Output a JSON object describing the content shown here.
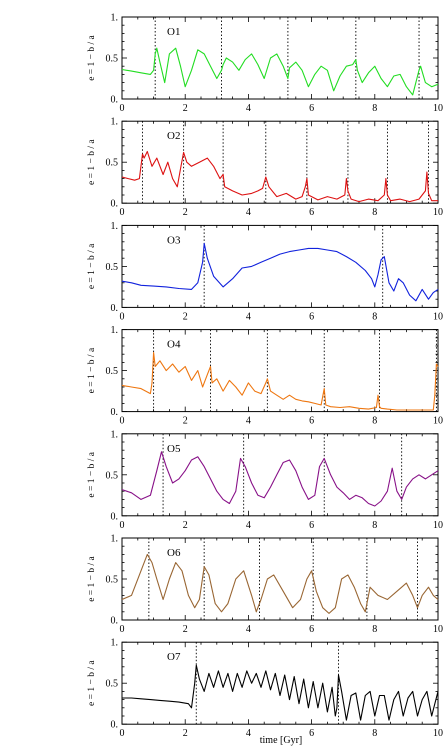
{
  "figure": {
    "xlabel": "time [Gyr]"
  },
  "chart_data": [
    {
      "type": "line",
      "name": "O1",
      "color": "#22dd22",
      "ylabel": "e = 1 − b / a",
      "xlim": [
        0,
        10
      ],
      "ylim": [
        0,
        1
      ],
      "xticks": [
        "0",
        "2",
        "4",
        "6",
        "8",
        "10"
      ],
      "yticks": [
        "0.",
        "0.5",
        "1."
      ],
      "pericenters": [
        1.05,
        3.15,
        5.25,
        7.4,
        9.4
      ],
      "x": [
        0,
        0.3,
        0.6,
        0.9,
        1.0,
        1.05,
        1.1,
        1.2,
        1.35,
        1.5,
        1.7,
        1.85,
        2.0,
        2.2,
        2.4,
        2.6,
        2.8,
        3.0,
        3.15,
        3.2,
        3.3,
        3.5,
        3.7,
        3.9,
        4.1,
        4.3,
        4.5,
        4.7,
        4.9,
        5.1,
        5.25,
        5.3,
        5.5,
        5.7,
        5.9,
        6.1,
        6.3,
        6.5,
        6.7,
        6.9,
        7.1,
        7.3,
        7.4,
        7.45,
        7.6,
        7.8,
        8.0,
        8.2,
        8.4,
        8.6,
        8.8,
        9.0,
        9.2,
        9.4,
        9.45,
        9.6,
        9.8,
        10.0
      ],
      "y": [
        0.36,
        0.34,
        0.32,
        0.3,
        0.35,
        0.55,
        0.62,
        0.45,
        0.2,
        0.55,
        0.62,
        0.4,
        0.15,
        0.35,
        0.6,
        0.55,
        0.4,
        0.25,
        0.35,
        0.42,
        0.5,
        0.45,
        0.35,
        0.48,
        0.55,
        0.42,
        0.25,
        0.5,
        0.55,
        0.4,
        0.25,
        0.38,
        0.45,
        0.35,
        0.15,
        0.3,
        0.4,
        0.35,
        0.1,
        0.28,
        0.4,
        0.42,
        0.48,
        0.35,
        0.2,
        0.32,
        0.4,
        0.25,
        0.15,
        0.28,
        0.3,
        0.15,
        0.05,
        0.35,
        0.4,
        0.2,
        0.15,
        0.18
      ]
    },
    {
      "type": "line",
      "name": "O2",
      "color": "#dd1111",
      "ylabel": "e = 1 − b / a",
      "xlim": [
        0,
        10
      ],
      "ylim": [
        0,
        1
      ],
      "xticks": [
        "0",
        "2",
        "4",
        "6",
        "8",
        "10"
      ],
      "yticks": [
        "0.",
        "0.5",
        "1."
      ],
      "pericenters": [
        0.65,
        1.95,
        3.2,
        4.55,
        5.85,
        7.15,
        8.4,
        9.7
      ],
      "x": [
        0,
        0.2,
        0.4,
        0.55,
        0.65,
        0.7,
        0.8,
        0.95,
        1.1,
        1.3,
        1.45,
        1.6,
        1.75,
        1.85,
        1.95,
        2.05,
        2.2,
        2.45,
        2.7,
        2.9,
        3.1,
        3.2,
        3.25,
        3.5,
        3.8,
        4.1,
        4.3,
        4.45,
        4.55,
        4.65,
        4.9,
        5.2,
        5.5,
        5.7,
        5.8,
        5.85,
        5.9,
        6.2,
        6.5,
        6.8,
        7.05,
        7.1,
        7.15,
        7.25,
        7.5,
        7.8,
        8.1,
        8.3,
        8.35,
        8.4,
        8.5,
        8.8,
        9.1,
        9.4,
        9.6,
        9.65,
        9.7,
        9.8,
        10.0
      ],
      "y": [
        0.32,
        0.3,
        0.28,
        0.3,
        0.6,
        0.55,
        0.63,
        0.45,
        0.55,
        0.35,
        0.5,
        0.3,
        0.2,
        0.42,
        0.62,
        0.5,
        0.45,
        0.5,
        0.55,
        0.45,
        0.3,
        0.35,
        0.2,
        0.15,
        0.1,
        0.12,
        0.15,
        0.18,
        0.32,
        0.2,
        0.08,
        0.12,
        0.05,
        0.08,
        0.2,
        0.3,
        0.1,
        0.04,
        0.08,
        0.05,
        0.1,
        0.3,
        0.15,
        0.05,
        0.02,
        0.05,
        0.03,
        0.1,
        0.3,
        0.1,
        0.03,
        0.05,
        0.02,
        0.05,
        0.15,
        0.38,
        0.12,
        0.03,
        0.03
      ]
    },
    {
      "type": "line",
      "name": "O3",
      "color": "#1122dd",
      "ylabel": "e = 1 − b / a",
      "xlim": [
        0,
        10
      ],
      "ylim": [
        0,
        1
      ],
      "xticks": [
        "0",
        "2",
        "4",
        "6",
        "8",
        "10"
      ],
      "yticks": [
        "0.",
        "0.5",
        "1."
      ],
      "pericenters": [
        2.6,
        8.25
      ],
      "x": [
        0,
        0.3,
        0.6,
        1.0,
        1.4,
        1.8,
        2.2,
        2.4,
        2.55,
        2.6,
        2.7,
        2.9,
        3.2,
        3.5,
        3.8,
        4.1,
        4.4,
        4.7,
        5.0,
        5.3,
        5.6,
        5.9,
        6.2,
        6.5,
        6.8,
        7.1,
        7.4,
        7.7,
        7.9,
        8.0,
        8.1,
        8.2,
        8.3,
        8.45,
        8.6,
        8.75,
        8.9,
        9.1,
        9.3,
        9.5,
        9.7,
        9.85,
        10.0
      ],
      "y": [
        0.32,
        0.3,
        0.27,
        0.26,
        0.25,
        0.23,
        0.22,
        0.3,
        0.55,
        0.78,
        0.6,
        0.38,
        0.25,
        0.35,
        0.48,
        0.5,
        0.55,
        0.6,
        0.65,
        0.68,
        0.7,
        0.72,
        0.72,
        0.7,
        0.68,
        0.62,
        0.55,
        0.45,
        0.35,
        0.25,
        0.4,
        0.58,
        0.62,
        0.3,
        0.2,
        0.35,
        0.3,
        0.15,
        0.08,
        0.22,
        0.1,
        0.18,
        0.22
      ]
    },
    {
      "type": "line",
      "name": "O4",
      "color": "#ee7711",
      "ylabel": "e = 1 − b / a",
      "xlim": [
        0,
        10
      ],
      "ylim": [
        0,
        1
      ],
      "xticks": [
        "0",
        "2",
        "4",
        "6",
        "8",
        "10"
      ],
      "yticks": [
        "0.",
        "0.5",
        "1."
      ],
      "pericenters": [
        1.0,
        2.8,
        4.6,
        6.4,
        8.15,
        9.95
      ],
      "x": [
        0,
        0.3,
        0.6,
        0.9,
        0.95,
        1.0,
        1.05,
        1.2,
        1.4,
        1.6,
        1.8,
        2.0,
        2.2,
        2.4,
        2.55,
        2.7,
        2.8,
        2.85,
        3.0,
        3.2,
        3.4,
        3.6,
        3.8,
        4.0,
        4.2,
        4.4,
        4.55,
        4.6,
        4.7,
        4.9,
        5.1,
        5.3,
        5.5,
        5.7,
        5.9,
        6.1,
        6.3,
        6.4,
        6.45,
        6.6,
        6.9,
        7.2,
        7.5,
        7.8,
        8.05,
        8.1,
        8.15,
        8.2,
        8.4,
        8.7,
        9.0,
        9.3,
        9.6,
        9.85,
        9.9,
        9.95,
        10.0
      ],
      "y": [
        0.32,
        0.3,
        0.28,
        0.22,
        0.35,
        0.72,
        0.55,
        0.62,
        0.5,
        0.58,
        0.48,
        0.55,
        0.38,
        0.5,
        0.3,
        0.45,
        0.55,
        0.35,
        0.4,
        0.25,
        0.38,
        0.3,
        0.2,
        0.35,
        0.25,
        0.22,
        0.35,
        0.4,
        0.25,
        0.2,
        0.15,
        0.2,
        0.15,
        0.13,
        0.12,
        0.1,
        0.08,
        0.28,
        0.08,
        0.06,
        0.05,
        0.06,
        0.04,
        0.03,
        0.05,
        0.2,
        0.06,
        0.04,
        0.03,
        0.02,
        0.02,
        0.02,
        0.02,
        0.02,
        0.2,
        0.58,
        0.55
      ]
    },
    {
      "type": "line",
      "name": "O5",
      "color": "#881188",
      "ylabel": "e = 1 − b / a",
      "xlim": [
        0,
        10
      ],
      "ylim": [
        0,
        1
      ],
      "xticks": [
        "0",
        "2",
        "4",
        "6",
        "8",
        "10"
      ],
      "yticks": [
        "0.",
        "0.5",
        "1."
      ],
      "pericenters": [
        1.3,
        3.85,
        6.4,
        8.85
      ],
      "x": [
        0,
        0.3,
        0.6,
        0.9,
        1.1,
        1.25,
        1.4,
        1.6,
        1.8,
        2.0,
        2.2,
        2.4,
        2.6,
        2.8,
        3.0,
        3.2,
        3.4,
        3.6,
        3.75,
        3.9,
        4.1,
        4.3,
        4.5,
        4.7,
        4.9,
        5.1,
        5.3,
        5.5,
        5.7,
        5.9,
        6.1,
        6.25,
        6.4,
        6.6,
        6.8,
        7.0,
        7.2,
        7.4,
        7.6,
        7.8,
        8.0,
        8.2,
        8.4,
        8.55,
        8.7,
        8.85,
        9.0,
        9.2,
        9.4,
        9.6,
        9.8,
        10.0
      ],
      "y": [
        0.32,
        0.28,
        0.2,
        0.25,
        0.55,
        0.78,
        0.6,
        0.4,
        0.45,
        0.55,
        0.68,
        0.72,
        0.6,
        0.45,
        0.3,
        0.2,
        0.15,
        0.3,
        0.7,
        0.6,
        0.4,
        0.25,
        0.22,
        0.35,
        0.5,
        0.65,
        0.68,
        0.55,
        0.35,
        0.2,
        0.25,
        0.6,
        0.7,
        0.5,
        0.35,
        0.28,
        0.2,
        0.25,
        0.22,
        0.15,
        0.12,
        0.18,
        0.3,
        0.58,
        0.3,
        0.2,
        0.35,
        0.45,
        0.5,
        0.45,
        0.5,
        0.55
      ]
    },
    {
      "type": "line",
      "name": "O6",
      "color": "#996633",
      "ylabel": "e = 1 − b / a",
      "xlim": [
        0,
        10
      ],
      "ylim": [
        0,
        1
      ],
      "xticks": [
        "0",
        "2",
        "4",
        "6",
        "8",
        "10"
      ],
      "yticks": [
        "0.",
        "0.5",
        "1."
      ],
      "pericenters": [
        0.85,
        2.6,
        4.35,
        6.05,
        7.75,
        9.35
      ],
      "x": [
        0,
        0.3,
        0.55,
        0.8,
        0.95,
        1.1,
        1.3,
        1.5,
        1.7,
        1.9,
        2.1,
        2.3,
        2.45,
        2.6,
        2.75,
        2.95,
        3.15,
        3.35,
        3.6,
        3.85,
        4.1,
        4.25,
        4.4,
        4.6,
        4.8,
        5.1,
        5.4,
        5.65,
        5.85,
        6.0,
        6.15,
        6.35,
        6.55,
        6.75,
        6.95,
        7.15,
        7.35,
        7.55,
        7.7,
        7.85,
        8.1,
        8.4,
        8.7,
        9.0,
        9.2,
        9.35,
        9.5,
        9.7,
        9.85,
        10.0
      ],
      "y": [
        0.25,
        0.3,
        0.55,
        0.8,
        0.7,
        0.5,
        0.25,
        0.5,
        0.7,
        0.6,
        0.3,
        0.15,
        0.25,
        0.65,
        0.55,
        0.2,
        0.1,
        0.2,
        0.5,
        0.6,
        0.3,
        0.1,
        0.25,
        0.5,
        0.55,
        0.35,
        0.15,
        0.25,
        0.5,
        0.6,
        0.35,
        0.15,
        0.08,
        0.15,
        0.5,
        0.55,
        0.4,
        0.2,
        0.1,
        0.4,
        0.3,
        0.25,
        0.35,
        0.45,
        0.3,
        0.15,
        0.3,
        0.4,
        0.3,
        0.25
      ]
    },
    {
      "type": "line",
      "name": "O7",
      "color": "#000000",
      "ylabel": "e = 1 − b / a",
      "xlim": [
        0,
        10
      ],
      "ylim": [
        0,
        1
      ],
      "xticks": [
        "0",
        "2",
        "4",
        "6",
        "8",
        "10"
      ],
      "yticks": [
        "0.",
        "0.5",
        "1."
      ],
      "pericenters": [
        2.35,
        6.85
      ],
      "x": [
        0,
        0.3,
        0.6,
        0.9,
        1.2,
        1.5,
        1.8,
        2.1,
        2.2,
        2.3,
        2.35,
        2.45,
        2.6,
        2.75,
        2.9,
        3.05,
        3.2,
        3.35,
        3.5,
        3.65,
        3.8,
        3.95,
        4.1,
        4.25,
        4.4,
        4.55,
        4.7,
        4.85,
        5.0,
        5.15,
        5.3,
        5.45,
        5.6,
        5.75,
        5.9,
        6.05,
        6.2,
        6.35,
        6.5,
        6.65,
        6.75,
        6.8,
        6.85,
        6.95,
        7.1,
        7.25,
        7.4,
        7.55,
        7.7,
        7.85,
        8.0,
        8.15,
        8.3,
        8.45,
        8.6,
        8.75,
        8.9,
        9.05,
        9.2,
        9.35,
        9.5,
        9.65,
        9.8,
        10.0
      ],
      "y": [
        0.32,
        0.32,
        0.31,
        0.3,
        0.29,
        0.28,
        0.27,
        0.25,
        0.2,
        0.5,
        0.72,
        0.55,
        0.4,
        0.62,
        0.45,
        0.65,
        0.45,
        0.62,
        0.4,
        0.62,
        0.45,
        0.65,
        0.5,
        0.62,
        0.45,
        0.65,
        0.42,
        0.62,
        0.35,
        0.6,
        0.3,
        0.58,
        0.25,
        0.55,
        0.2,
        0.52,
        0.2,
        0.5,
        0.15,
        0.45,
        0.1,
        0.2,
        0.6,
        0.4,
        0.05,
        0.35,
        0.38,
        0.05,
        0.35,
        0.4,
        0.1,
        0.35,
        0.35,
        0.05,
        0.3,
        0.4,
        0.1,
        0.32,
        0.4,
        0.1,
        0.3,
        0.4,
        0.1,
        0.4
      ]
    }
  ]
}
